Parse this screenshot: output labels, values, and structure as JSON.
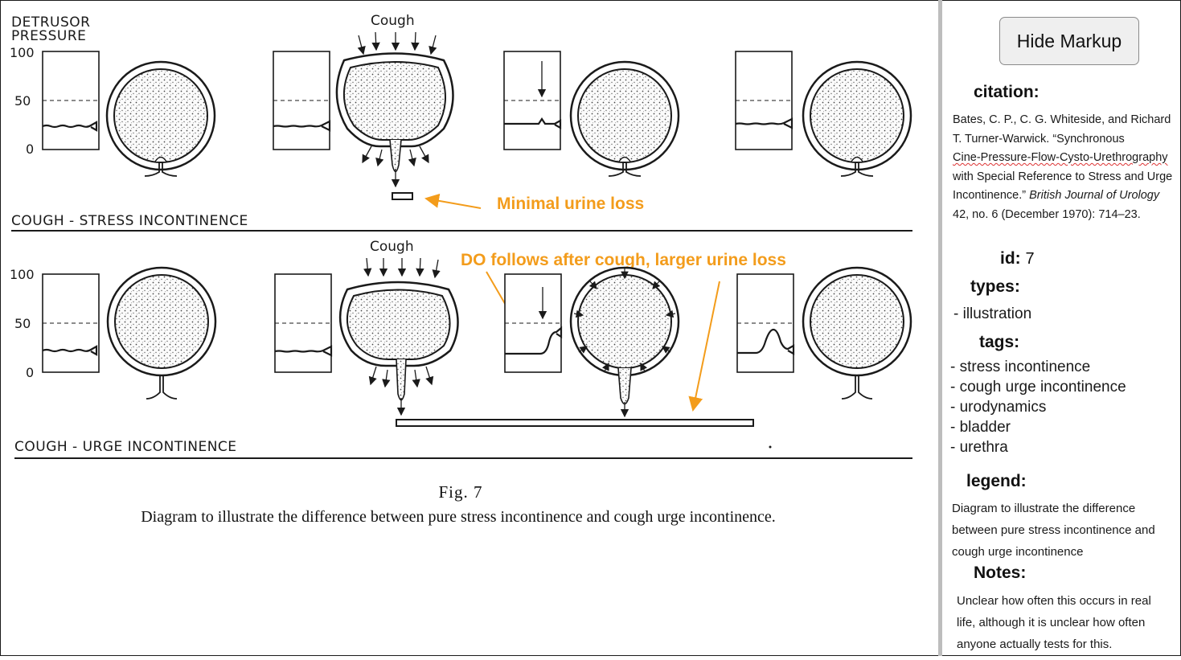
{
  "figure": {
    "y_axis_label_line1": "DETRUSOR",
    "y_axis_label_line2": "PRESSURE",
    "ticks": [
      "100",
      "50",
      "0"
    ],
    "row1_title": "COUGH - STRESS  INCONTINENCE",
    "row2_title": "COUGH - URGE  INCONTINENCE",
    "cough_label": "Cough",
    "annotation_1": "Minimal urine loss",
    "annotation_2": "DO follows after cough, larger urine loss",
    "fig_label": "Fig. 7",
    "caption": "Diagram to illustrate the difference between pure stress incontinence and cough urge incontinence.",
    "annotation_color": "#f39c1b"
  },
  "sidebar": {
    "hide_button": "Hide Markup",
    "citation_heading": "citation:",
    "citation_lines": [
      "Bates, C. P., C. G. Whiteside, and Richard",
      "T. Turner-Warwick. “Synchronous",
      "Cine-Pressure-Flow-Cysto-Urethrography",
      "with Special Reference to Stress and Urge",
      "Incontinence.”",
      "British Journal of Urology",
      "42, no. 6 (December 1970): 714–23."
    ],
    "id_label": "id:",
    "id_value": "7",
    "types_heading": "types:",
    "types": [
      "- illustration"
    ],
    "tags_heading": "tags:",
    "tags": [
      "- stress incontinence",
      "- cough urge incontinence",
      "- urodynamics",
      "- bladder",
      "- urethra"
    ],
    "legend_heading": "legend:",
    "legend_lines": [
      "Diagram to illustrate the difference",
      "between pure stress incontinence and",
      "cough urge incontinence"
    ],
    "notes_heading": "Notes:",
    "notes_lines": [
      "Unclear how often this occurs in real",
      "life, although it is unclear how often",
      "anyone actually tests for this."
    ]
  }
}
